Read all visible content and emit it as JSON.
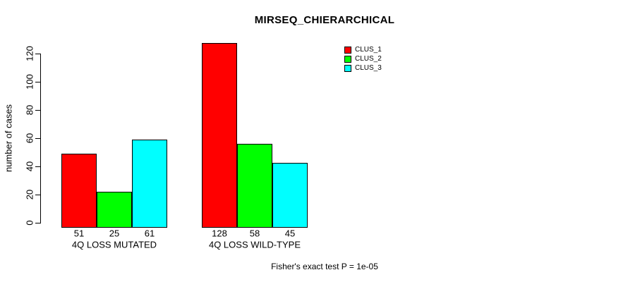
{
  "chart_data": {
    "type": "bar",
    "title": "MIRSEQ_CHIERARCHICAL",
    "ylabel": "number of cases",
    "xlabel": "",
    "categories": [
      "4Q LOSS MUTATED",
      "4Q LOSS WILD-TYPE"
    ],
    "series": [
      {
        "name": "CLUS_1",
        "color": "#ff0000",
        "values": [
          51,
          128
        ]
      },
      {
        "name": "CLUS_2",
        "color": "#00ff00",
        "values": [
          25,
          58
        ]
      },
      {
        "name": "CLUS_3",
        "color": "#00ffff",
        "values": [
          61,
          45
        ]
      }
    ],
    "bar_value_labels": [
      [
        51,
        25,
        61
      ],
      [
        128,
        58,
        45
      ]
    ],
    "yticks": [
      0,
      20,
      40,
      60,
      80,
      100,
      120
    ],
    "ylim": [
      0,
      130
    ],
    "grid": false,
    "legend_position": "top-right",
    "annotation": "Fisher's exact test P = 1e-05",
    "colors": {
      "bar_border": "#000000",
      "axis": "#000000",
      "text": "#000000",
      "background": "#ffffff"
    }
  }
}
